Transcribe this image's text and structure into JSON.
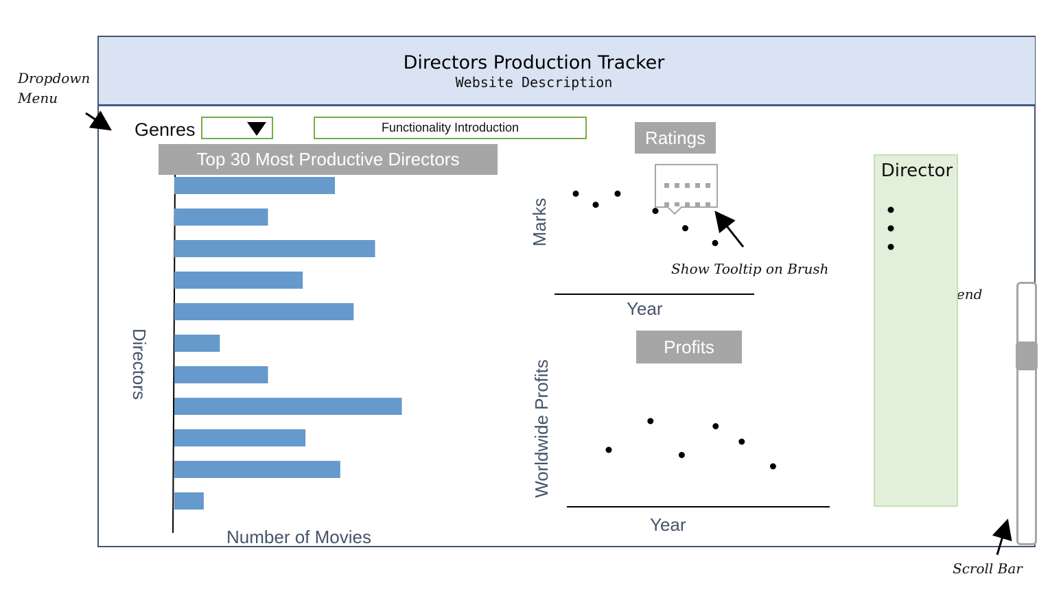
{
  "header": {
    "title": "Directors Production Tracker",
    "description": "Website Description"
  },
  "controls": {
    "genres_label": "Genres",
    "genres_dropdown_value": "",
    "functionality_button": "Functionality Introduction"
  },
  "annotations": {
    "dropdown_menu_line1": "Dropdown",
    "dropdown_menu_line2": "Menu",
    "tooltip": "Show Tooltip on Brush",
    "legend": "Legend",
    "scroll_bar": "Scroll Bar"
  },
  "bar_chart": {
    "title": "Top 30  Most Productive Directors",
    "ylabel": "Directors",
    "xlabel": "Number of Movies",
    "values": [
      6,
      3.5,
      7.5,
      4.8,
      6.7,
      1.7,
      3.5,
      8.5,
      4.9,
      6.2,
      1.1
    ],
    "color": "#6699cc"
  },
  "ratings_chart": {
    "title": "Ratings",
    "ylabel": "Marks",
    "xlabel": "Year",
    "points": [
      [
        1,
        8.2
      ],
      [
        2,
        7.3
      ],
      [
        3.1,
        8.2
      ],
      [
        5,
        6.8
      ],
      [
        6.5,
        5.4
      ],
      [
        8,
        4.2
      ]
    ]
  },
  "profits_chart": {
    "title": "Profits",
    "ylabel": "Worldwide Profits",
    "xlabel": "Year",
    "points": [
      [
        1.5,
        5.6
      ],
      [
        3.1,
        8.4
      ],
      [
        4.3,
        5.1
      ],
      [
        5.6,
        7.9
      ],
      [
        6.6,
        6.4
      ],
      [
        7.8,
        4.0
      ]
    ]
  },
  "legend": {
    "title": "Director",
    "items": 3
  },
  "scrollbar": {
    "position": 0.25
  }
}
